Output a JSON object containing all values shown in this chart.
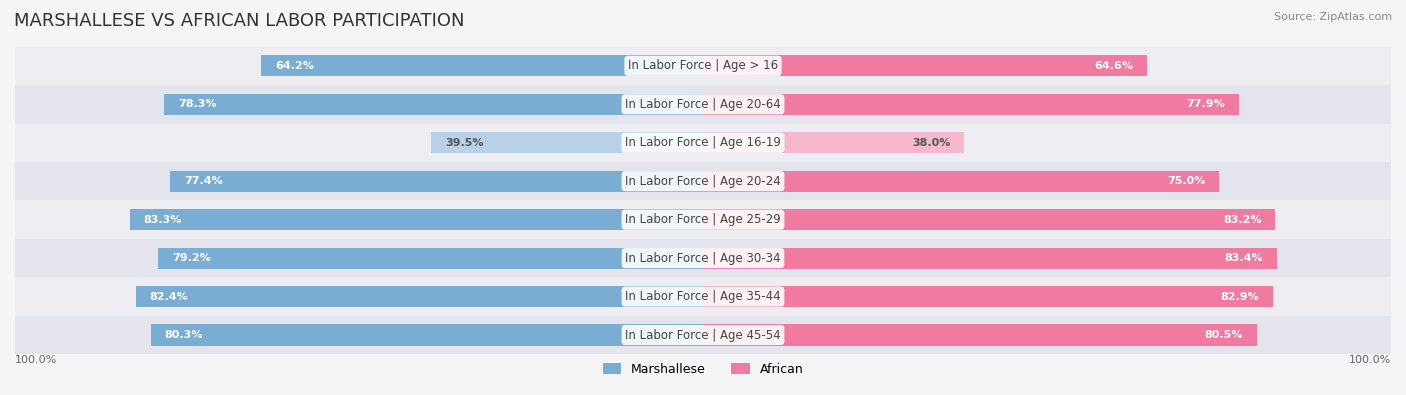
{
  "title": "MARSHALLESE VS AFRICAN LABOR PARTICIPATION",
  "source": "Source: ZipAtlas.com",
  "categories": [
    "In Labor Force | Age > 16",
    "In Labor Force | Age 20-64",
    "In Labor Force | Age 16-19",
    "In Labor Force | Age 20-24",
    "In Labor Force | Age 25-29",
    "In Labor Force | Age 30-34",
    "In Labor Force | Age 35-44",
    "In Labor Force | Age 45-54"
  ],
  "marshallese_values": [
    64.2,
    78.3,
    39.5,
    77.4,
    83.3,
    79.2,
    82.4,
    80.3
  ],
  "african_values": [
    64.6,
    77.9,
    38.0,
    75.0,
    83.2,
    83.4,
    82.9,
    80.5
  ],
  "marshallese_color": "#7aadd4",
  "marshallese_light_color": "#b8d0e8",
  "african_color": "#f07aa0",
  "african_light_color": "#f5b8cc",
  "row_bg_colors": [
    "#ededf2",
    "#e4e4ec"
  ],
  "max_value": 100.0,
  "bar_height": 0.55,
  "title_fontsize": 13,
  "label_fontsize": 8.5,
  "value_fontsize": 8,
  "legend_fontsize": 9
}
